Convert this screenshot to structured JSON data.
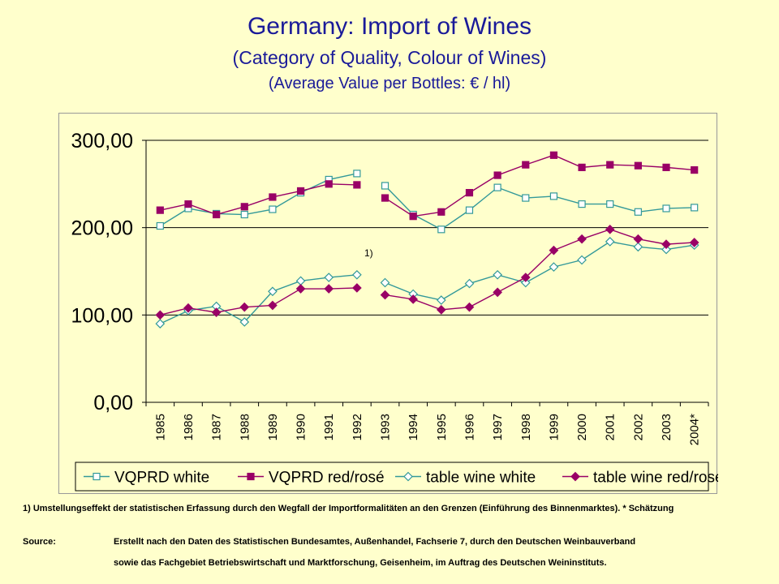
{
  "title": "Germany: Import of Wines",
  "subtitle": "(Category of Quality, Colour of Wines)",
  "subtitle2": "(Average Value per Bottles: € / hl)",
  "annotation": "1)",
  "footnote": "1) Umstellungseffekt der statistischen Erfassung durch den Wegfall der Importformalitäten an den Grenzen (Einführung des Binnenmarktes). * Schätzung",
  "source_label": "Source:",
  "source_line1": "Erstellt nach den Daten des Statistischen Bundesamtes, Außenhandel, Fachserie 7, durch den Deutschen Weinbauverband",
  "source_line2": "sowie das Fachgebiet Betriebswirtschaft und Marktforschung, Geisenheim, im Auftrag des Deutschen Weininstituts.",
  "chart_data": {
    "type": "line",
    "categories": [
      "1985",
      "1986",
      "1987",
      "1988",
      "1989",
      "1990",
      "1991",
      "1992",
      "1993",
      "1994",
      "1995",
      "1996",
      "1997",
      "1998",
      "1999",
      "2000",
      "2001",
      "2002",
      "2003",
      "2004*"
    ],
    "yticks": [
      "0,00",
      "100,00",
      "200,00",
      "300,00"
    ],
    "ylim": [
      0,
      300
    ],
    "legend_position": "bottom",
    "gridlines": [
      100,
      200,
      300
    ],
    "series": [
      {
        "name": "VQPRD white",
        "marker": "square-open",
        "color": "#339999",
        "values": [
          202,
          222,
          216,
          215,
          221,
          240,
          255,
          262,
          248,
          215,
          198,
          220,
          246,
          234,
          236,
          227,
          227,
          218,
          222,
          223
        ]
      },
      {
        "name": "VQPRD red/rosé",
        "marker": "square-filled",
        "color": "#990066",
        "values": [
          220,
          227,
          215,
          224,
          235,
          242,
          250,
          249,
          234,
          213,
          218,
          240,
          260,
          272,
          283,
          269,
          272,
          271,
          269,
          266
        ]
      },
      {
        "name": "table wine white",
        "marker": "diamond-open",
        "color": "#339999",
        "values": [
          90,
          105,
          110,
          92,
          127,
          139,
          143,
          146,
          137,
          124,
          117,
          136,
          146,
          137,
          155,
          163,
          184,
          178,
          175,
          180
        ]
      },
      {
        "name": "table wine red/rosé",
        "marker": "diamond-filled",
        "color": "#990066",
        "values": [
          100,
          108,
          103,
          109,
          111,
          130,
          130,
          131,
          123,
          118,
          106,
          109,
          126,
          143,
          174,
          187,
          198,
          187,
          181,
          183
        ]
      }
    ]
  }
}
